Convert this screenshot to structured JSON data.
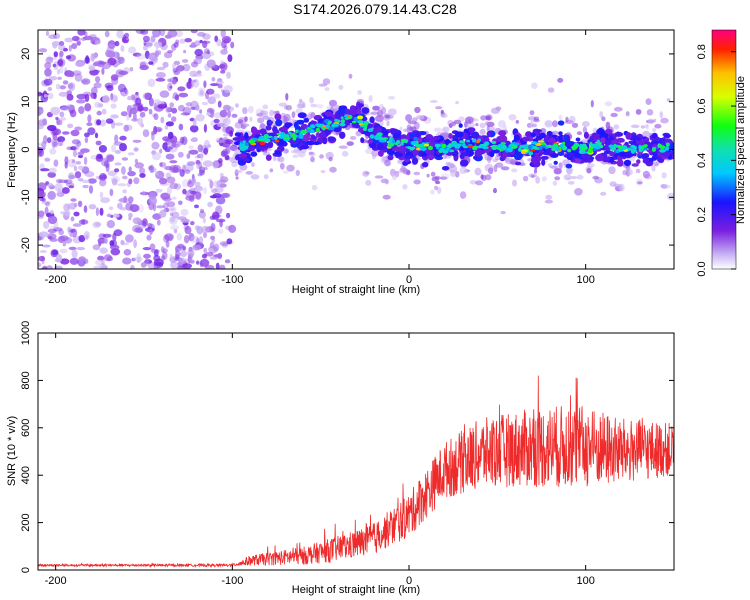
{
  "title": "S174.2026.079.14.43.C28",
  "colors": {
    "snr_line": "#ee2a2a",
    "spectro_base": "#7a1fe0",
    "axis": "#000000"
  },
  "chart_data": [
    {
      "type": "heatmap",
      "name": "spectrogram",
      "title": "S174.2026.079.14.43.C28",
      "xlabel": "Height of straight line (km)",
      "ylabel": "Frequency (Hz)",
      "xlim": [
        -210,
        150
      ],
      "ylim": [
        -25,
        25
      ],
      "xticks": [
        -200,
        -100,
        0,
        100
      ],
      "yticks": [
        -20,
        -10,
        0,
        10,
        20
      ],
      "colorbar": {
        "label": "Normalized spectral amplitude",
        "range": [
          0,
          0.88
        ],
        "ticks": [
          "0.0",
          "0.2",
          "0.4",
          "0.6",
          "0.8"
        ]
      },
      "ridge": {
        "description": "frequency peak vs height",
        "x": [
          -95,
          -80,
          -65,
          -50,
          -35,
          -28,
          -20,
          -10,
          0,
          10,
          20,
          30,
          40,
          50,
          60,
          70,
          80,
          90,
          100,
          110,
          120,
          130,
          140,
          150
        ],
        "y": [
          1,
          2,
          3,
          4.5,
          6.5,
          6,
          3,
          1.5,
          1,
          0.5,
          0.5,
          0.8,
          1,
          0.6,
          0.3,
          0.5,
          1,
          0.4,
          0.2,
          0.8,
          0.2,
          0.4,
          0.5,
          0
        ]
      },
      "noise_region_x": [
        -210,
        -100
      ]
    },
    {
      "type": "line",
      "name": "snr",
      "xlabel": "Height of straight line (km)",
      "ylabel": "SNR (10 * v/v)",
      "xlim": [
        -210,
        150
      ],
      "ylim": [
        0,
        1000
      ],
      "xticks": [
        -200,
        -100,
        0,
        100
      ],
      "yticks": [
        0,
        200,
        400,
        600,
        800,
        1000
      ],
      "envelope": {
        "x": [
          -210,
          -100,
          -90,
          -60,
          -40,
          -20,
          0,
          20,
          40,
          60,
          80,
          100,
          120,
          150
        ],
        "center": [
          20,
          20,
          40,
          60,
          90,
          130,
          230,
          420,
          490,
          510,
          520,
          520,
          500,
          510
        ],
        "spread": [
          8,
          10,
          40,
          70,
          100,
          120,
          170,
          220,
          270,
          290,
          320,
          320,
          260,
          200
        ]
      }
    }
  ]
}
